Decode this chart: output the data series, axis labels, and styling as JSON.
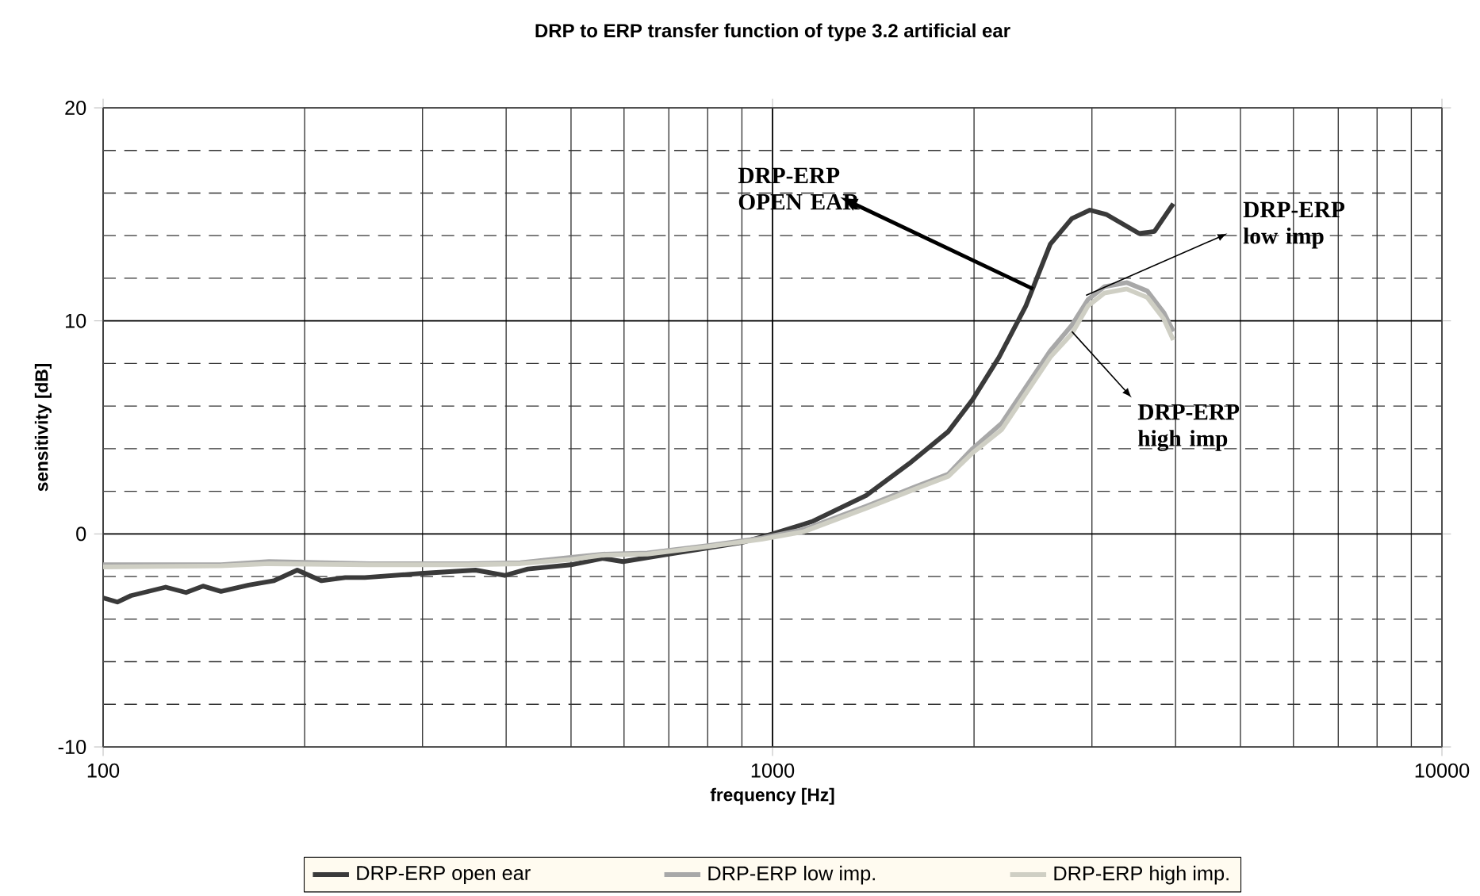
{
  "chart_data": {
    "type": "line",
    "title": "DRP to ERP transfer function of type 3.2 artificial ear",
    "xlabel": "frequency [Hz]",
    "ylabel": "sensitivity [dB]",
    "log": "x",
    "xlim": [
      100,
      10000
    ],
    "xticks": [
      100,
      1000,
      10000
    ],
    "ylim": [
      -10,
      20
    ],
    "yticks": [
      -10,
      0,
      10,
      20
    ],
    "grid": true,
    "legend": "bottom",
    "marker": "none",
    "line_style": "solid",
    "series": [
      {
        "name": "DRP-ERP open ear",
        "color": "#3a3a3a",
        "x": [
          100,
          105,
          110,
          124,
          133,
          141,
          150,
          165,
          180,
          195,
          212,
          230,
          246,
          301,
          360,
          398,
          431,
          500,
          558,
          598,
          700,
          786,
          900,
          1000,
          1112,
          1150,
          1380,
          1600,
          1830,
          1990,
          2180,
          2390,
          2600,
          2800,
          2980,
          3150,
          3530,
          3720,
          3970
        ],
        "values": [
          -3.0,
          -3.2,
          -2.9,
          -2.5,
          -2.75,
          -2.45,
          -2.7,
          -2.4,
          -2.2,
          -1.7,
          -2.2,
          -2.05,
          -2.05,
          -1.85,
          -1.7,
          -1.95,
          -1.65,
          -1.45,
          -1.15,
          -1.3,
          -0.95,
          -0.7,
          -0.4,
          0.0,
          0.45,
          0.6,
          1.8,
          3.3,
          4.8,
          6.3,
          8.3,
          10.7,
          13.6,
          14.8,
          15.2,
          15.0,
          14.1,
          14.2,
          15.5
        ]
      },
      {
        "name": "DRP-ERP low imp.",
        "color": "#a8a8a8",
        "x": [
          100,
          150,
          177,
          250,
          350,
          420,
          500,
          558,
          650,
          800,
          963,
          1112,
          1380,
          1630,
          1830,
          1990,
          2200,
          2380,
          2600,
          2800,
          2960,
          3130,
          3380,
          3630,
          3840,
          3970
        ],
        "values": [
          -1.45,
          -1.45,
          -1.3,
          -1.4,
          -1.4,
          -1.35,
          -1.1,
          -0.95,
          -0.9,
          -0.55,
          -0.2,
          0.2,
          1.3,
          2.2,
          2.8,
          4.0,
          5.2,
          6.8,
          8.6,
          9.8,
          11.0,
          11.6,
          11.8,
          11.4,
          10.4,
          9.5
        ]
      },
      {
        "name": "DRP-ERP high imp.",
        "color": "#cfcfc4",
        "x": [
          100,
          150,
          177,
          250,
          350,
          420,
          500,
          558,
          650,
          800,
          963,
          1112,
          1380,
          1630,
          1830,
          1990,
          2200,
          2380,
          2600,
          2800,
          2960,
          3130,
          3380,
          3630,
          3840,
          3970
        ],
        "values": [
          -1.55,
          -1.5,
          -1.4,
          -1.45,
          -1.45,
          -1.4,
          -1.2,
          -1.0,
          -0.95,
          -0.6,
          -0.25,
          0.1,
          1.2,
          2.1,
          2.7,
          3.8,
          4.9,
          6.5,
          8.3,
          9.4,
          10.7,
          11.3,
          11.5,
          11.1,
          10.1,
          9.1
        ]
      }
    ],
    "annotations": [
      {
        "text": "DRP-ERP OPEN EAR",
        "x": 2450,
        "y": 11.5
      },
      {
        "text": "DRP-ERP low imp",
        "x": 2940,
        "y": 11.2
      },
      {
        "text": "DRP-ERP high imp",
        "x": 2800,
        "y": 9.5
      }
    ]
  }
}
